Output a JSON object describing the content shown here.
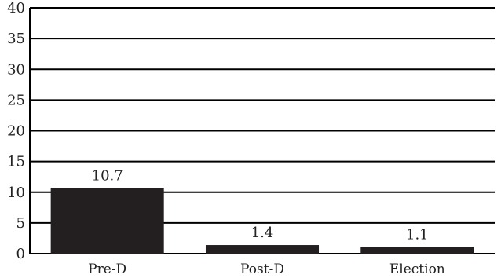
{
  "chart_data": {
    "type": "bar",
    "categories": [
      "Pre-D",
      "Post-D",
      "Election"
    ],
    "values": [
      10.7,
      1.4,
      1.1
    ],
    "data_labels": [
      "10.7",
      "1.4",
      "1.1"
    ],
    "ylim": [
      0,
      40
    ],
    "yticks": [
      0,
      5,
      10,
      15,
      20,
      25,
      30,
      35,
      40
    ],
    "grid": true,
    "legend": "none",
    "title": "",
    "xlabel": "",
    "ylabel": "",
    "colors": {
      "bar": "#231f20",
      "grid": "#000000",
      "text": "#222222",
      "background": "#ffffff"
    }
  }
}
